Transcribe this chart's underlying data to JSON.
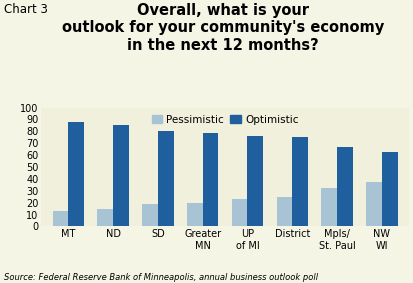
{
  "categories": [
    "MT",
    "ND",
    "SD",
    "Greater\nMN",
    "UP\nof MI",
    "District",
    "Mpls/\nSt. Paul",
    "NW\nWI"
  ],
  "pessimistic": [
    13,
    15,
    19,
    20,
    23,
    25,
    32,
    37
  ],
  "optimistic": [
    88,
    85,
    80,
    79,
    76,
    75,
    67,
    63
  ],
  "pessimistic_color": "#a8c4d4",
  "optimistic_color": "#1f5f9e",
  "background_color": "#f5f5e6",
  "chart_bg_color": "#f0f0dc",
  "title": "Overall, what is your\noutlook for your community's economy\nin the next 12 months?",
  "chart_label": "Chart 3",
  "ylim": [
    0,
    100
  ],
  "yticks": [
    0,
    10,
    20,
    30,
    40,
    50,
    60,
    70,
    80,
    90,
    100
  ],
  "legend_pessimistic": "Pessimistic",
  "legend_optimistic": "Optimistic",
  "source_text": "Source: Federal Reserve Bank of Minneapolis, annual business outlook poll",
  "title_fontsize": 10.5,
  "chart_label_fontsize": 8.5,
  "tick_fontsize": 7,
  "legend_fontsize": 7.5,
  "source_fontsize": 6,
  "bar_width": 0.35
}
